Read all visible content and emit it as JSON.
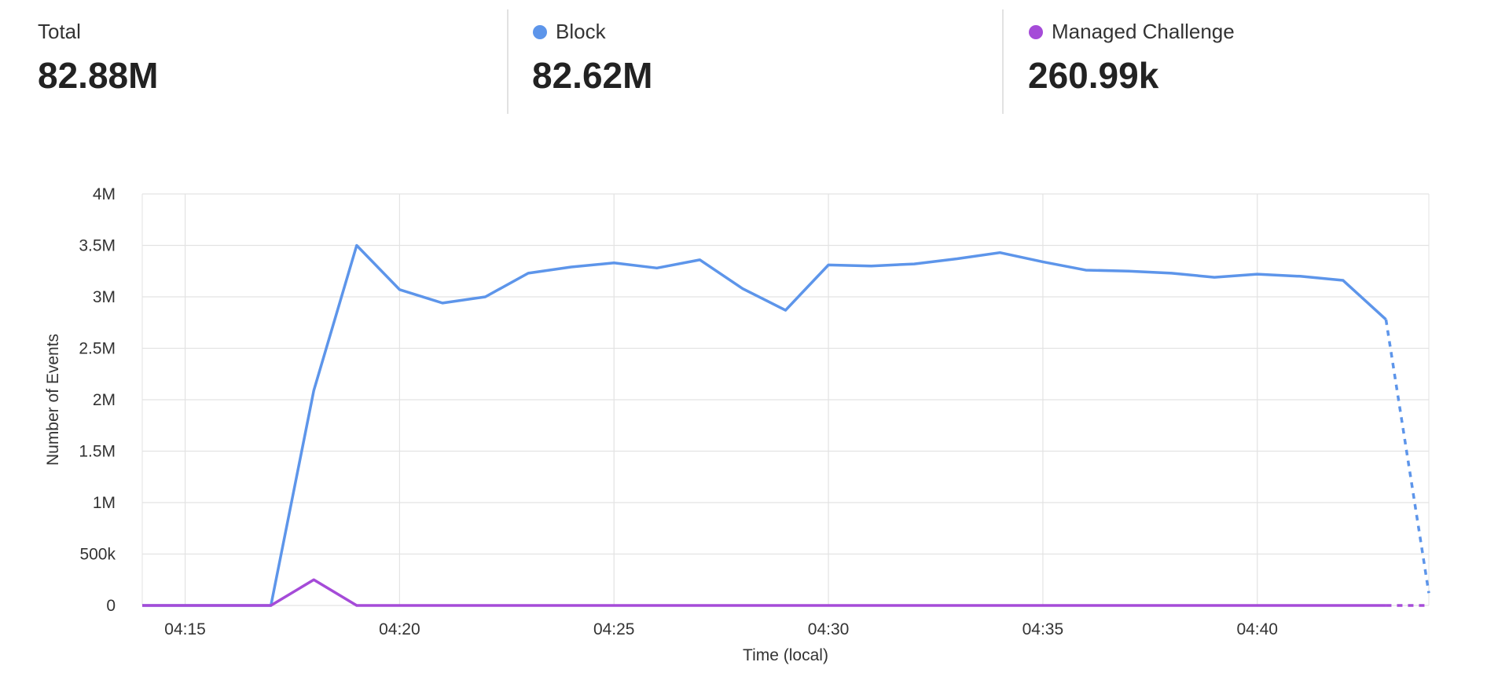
{
  "stats": [
    {
      "label": "Total",
      "value": "82.88M"
    },
    {
      "label": "Block",
      "value": "82.62M",
      "color": "#5d95ea"
    },
    {
      "label": "Managed Challenge",
      "value": "260.99k",
      "color": "#a54bd8"
    }
  ],
  "chart_data": {
    "type": "line",
    "x_label": "Time (local)",
    "y_label": "Number of Events",
    "x": [
      "04:14",
      "04:15",
      "04:16",
      "04:17",
      "04:18",
      "04:19",
      "04:20",
      "04:21",
      "04:22",
      "04:23",
      "04:24",
      "04:25",
      "04:26",
      "04:27",
      "04:28",
      "04:29",
      "04:30",
      "04:31",
      "04:32",
      "04:33",
      "04:34",
      "04:35",
      "04:36",
      "04:37",
      "04:38",
      "04:39",
      "04:40",
      "04:41",
      "04:42",
      "04:43",
      "04:44"
    ],
    "xlim": [
      "04:14",
      "04:44"
    ],
    "xticks": [
      "04:15",
      "04:20",
      "04:25",
      "04:30",
      "04:35",
      "04:40"
    ],
    "ylim": [
      0,
      4000000
    ],
    "yticks": [
      0,
      {
        "value": 500000,
        "label": "500k"
      },
      {
        "value": 1000000,
        "label": "1M"
      },
      {
        "value": 1500000,
        "label": "1.5M"
      },
      {
        "value": 2000000,
        "label": "2M"
      },
      {
        "value": 2500000,
        "label": "2.5M"
      },
      {
        "value": 3000000,
        "label": "3M"
      },
      {
        "value": 3500000,
        "label": "3.5M"
      },
      {
        "value": 4000000,
        "label": "4M"
      }
    ],
    "grid": true,
    "series": [
      {
        "name": "Block",
        "color": "#5d95ea",
        "values": [
          0,
          0,
          0,
          0,
          2090000,
          3500000,
          3070000,
          2940000,
          3000000,
          3230000,
          3290000,
          3330000,
          3280000,
          3360000,
          3080000,
          2870000,
          3310000,
          3300000,
          3320000,
          3370000,
          3430000,
          3340000,
          3260000,
          3250000,
          3230000,
          3190000,
          3220000,
          3200000,
          3160000,
          2780000,
          120000
        ]
      },
      {
        "name": "Managed Challenge",
        "color": "#a54bd8",
        "values": [
          0,
          0,
          0,
          0,
          250000,
          0,
          0,
          0,
          0,
          0,
          0,
          0,
          0,
          0,
          0,
          0,
          0,
          0,
          0,
          0,
          0,
          0,
          0,
          0,
          0,
          0,
          0,
          0,
          0,
          0,
          0
        ]
      }
    ]
  }
}
